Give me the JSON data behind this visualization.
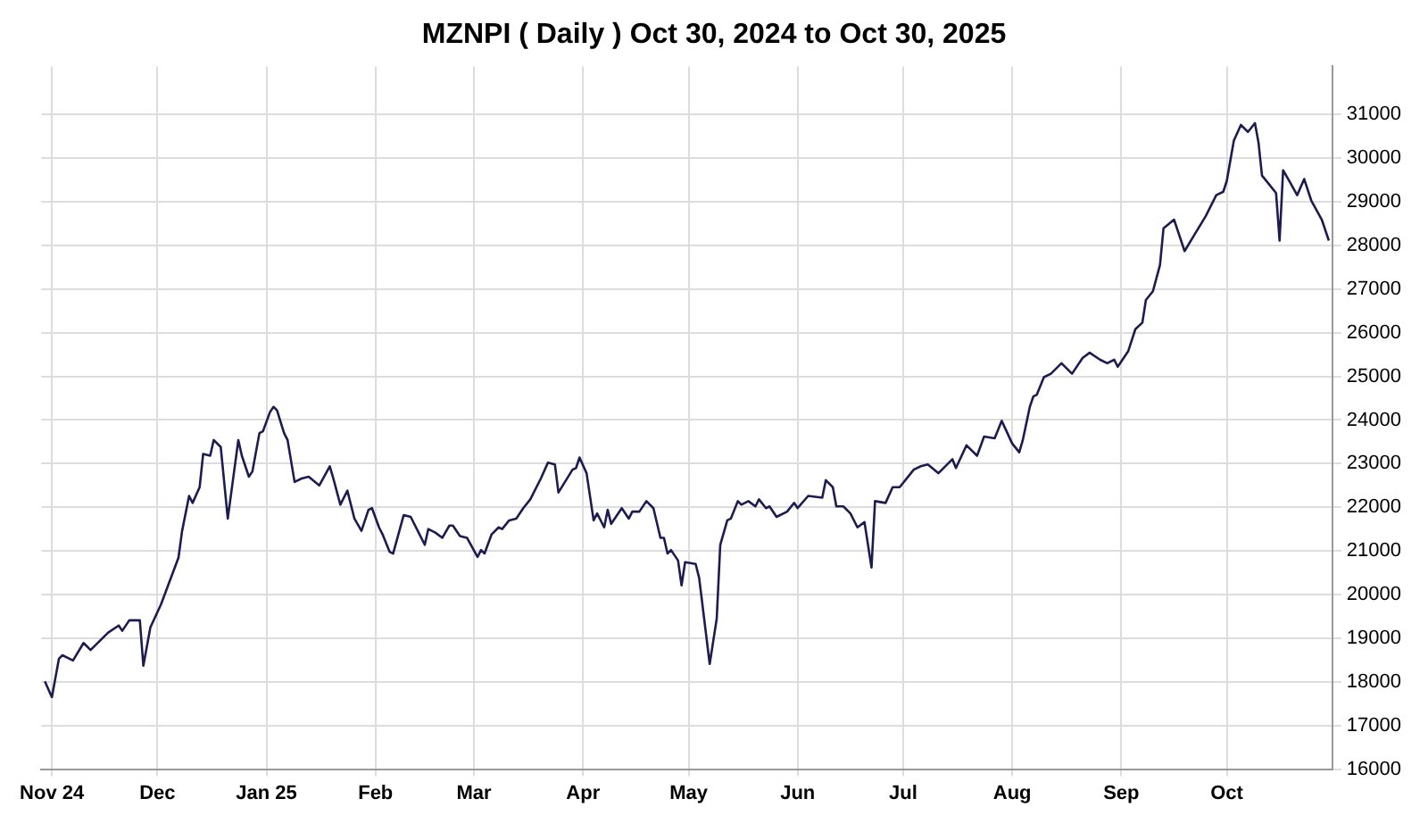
{
  "chart_data": {
    "type": "line",
    "title": "MZNPI ( Daily ) Oct 30, 2024 to Oct 30, 2025",
    "x": [
      "2024-10-30",
      "2024-11-01",
      "2024-11-03",
      "2024-11-04",
      "2024-11-07",
      "2024-11-10",
      "2024-11-12",
      "2024-11-17",
      "2024-11-20",
      "2024-11-21",
      "2024-11-23",
      "2024-11-26",
      "2024-11-27",
      "2024-11-29",
      "2024-12-02",
      "2024-12-07",
      "2024-12-08",
      "2024-12-10",
      "2024-12-11",
      "2024-12-13",
      "2024-12-14",
      "2024-12-16",
      "2024-12-17",
      "2024-12-19",
      "2024-12-21",
      "2024-12-24",
      "2024-12-25",
      "2024-12-27",
      "2024-12-28",
      "2024-12-30",
      "2024-12-31",
      "2025-01-02",
      "2025-01-03",
      "2025-01-04",
      "2025-01-06",
      "2025-01-07",
      "2025-01-09",
      "2025-01-11",
      "2025-01-13",
      "2025-01-16",
      "2025-01-19",
      "2025-01-20",
      "2025-01-22",
      "2025-01-24",
      "2025-01-26",
      "2025-01-28",
      "2025-01-30",
      "2025-01-31",
      "2025-02-02",
      "2025-02-03",
      "2025-02-05",
      "2025-02-06",
      "2025-02-09",
      "2025-02-11",
      "2025-02-13",
      "2025-02-15",
      "2025-02-16",
      "2025-02-18",
      "2025-02-20",
      "2025-02-22",
      "2025-02-23",
      "2025-02-25",
      "2025-02-27",
      "2025-03-02",
      "2025-03-03",
      "2025-03-04",
      "2025-03-06",
      "2025-03-08",
      "2025-03-09",
      "2025-03-11",
      "2025-03-13",
      "2025-03-15",
      "2025-03-17",
      "2025-03-20",
      "2025-03-22",
      "2025-03-24",
      "2025-03-25",
      "2025-03-29",
      "2025-03-30",
      "2025-03-31",
      "2025-04-02",
      "2025-04-04",
      "2025-04-05",
      "2025-04-07",
      "2025-04-08",
      "2025-04-09",
      "2025-04-12",
      "2025-04-14",
      "2025-04-15",
      "2025-04-17",
      "2025-04-19",
      "2025-04-21",
      "2025-04-23",
      "2025-04-24",
      "2025-04-25",
      "2025-04-26",
      "2025-04-28",
      "2025-04-29",
      "2025-04-30",
      "2025-05-03",
      "2025-05-04",
      "2025-05-07",
      "2025-05-09",
      "2025-05-10",
      "2025-05-12",
      "2025-05-13",
      "2025-05-15",
      "2025-05-16",
      "2025-05-18",
      "2025-05-20",
      "2025-05-21",
      "2025-05-23",
      "2025-05-24",
      "2025-05-26",
      "2025-05-29",
      "2025-05-31",
      "2025-06-01",
      "2025-06-04",
      "2025-06-08",
      "2025-06-09",
      "2025-06-11",
      "2025-06-12",
      "2025-06-14",
      "2025-06-16",
      "2025-06-18",
      "2025-06-20",
      "2025-06-22",
      "2025-06-23",
      "2025-06-26",
      "2025-06-28",
      "2025-06-30",
      "2025-07-04",
      "2025-07-06",
      "2025-07-08",
      "2025-07-11",
      "2025-07-15",
      "2025-07-16",
      "2025-07-19",
      "2025-07-22",
      "2025-07-24",
      "2025-07-27",
      "2025-07-29",
      "2025-08-01",
      "2025-08-03",
      "2025-08-04",
      "2025-08-06",
      "2025-08-07",
      "2025-08-08",
      "2025-08-10",
      "2025-08-12",
      "2025-08-15",
      "2025-08-18",
      "2025-08-21",
      "2025-08-23",
      "2025-08-26",
      "2025-08-28",
      "2025-08-30",
      "2025-08-31",
      "2025-09-03",
      "2025-09-05",
      "2025-09-07",
      "2025-09-08",
      "2025-09-10",
      "2025-09-12",
      "2025-09-13",
      "2025-09-16",
      "2025-09-19",
      "2025-09-22",
      "2025-09-25",
      "2025-09-28",
      "2025-09-30",
      "2025-10-01",
      "2025-10-03",
      "2025-10-05",
      "2025-10-07",
      "2025-10-09",
      "2025-10-10",
      "2025-10-11",
      "2025-10-13",
      "2025-10-15",
      "2025-10-16",
      "2025-10-17",
      "2025-10-19",
      "2025-10-21",
      "2025-10-23",
      "2025-10-25",
      "2025-10-28",
      "2025-10-30"
    ],
    "series": [
      {
        "color": "#1c1c50",
        "values": [
          18010,
          17650,
          18530,
          18610,
          18490,
          18890,
          18730,
          19130,
          19290,
          19170,
          19410,
          19410,
          18370,
          19250,
          19770,
          20850,
          21450,
          22260,
          22100,
          22460,
          23220,
          23180,
          23540,
          23380,
          21740,
          23540,
          23180,
          22700,
          22820,
          23700,
          23740,
          24180,
          24300,
          24220,
          23700,
          23540,
          22580,
          22660,
          22700,
          22500,
          22940,
          22660,
          22060,
          22380,
          21740,
          21460,
          21940,
          21980,
          21540,
          21380,
          20980,
          20940,
          21820,
          21780,
          21460,
          21140,
          21500,
          21420,
          21300,
          21580,
          21580,
          21340,
          21300,
          20860,
          21020,
          20940,
          21380,
          21540,
          21500,
          21700,
          21740,
          21980,
          22180,
          22660,
          23020,
          22980,
          22340,
          22860,
          22900,
          23140,
          22780,
          21700,
          21860,
          21540,
          21940,
          21620,
          21980,
          21740,
          21900,
          21900,
          22140,
          21980,
          21300,
          21300,
          20940,
          21020,
          20780,
          20210,
          20740,
          20700,
          20380,
          18410,
          19450,
          21140,
          21700,
          21740,
          22140,
          22060,
          22140,
          22020,
          22180,
          21980,
          22020,
          21780,
          21900,
          22100,
          21980,
          22260,
          22220,
          22620,
          22460,
          22020,
          22020,
          21860,
          21540,
          21660,
          20620,
          22140,
          22100,
          22460,
          22460,
          22860,
          22940,
          22980,
          22780,
          23100,
          22900,
          23420,
          23180,
          23620,
          23580,
          23980,
          23460,
          23260,
          23540,
          24300,
          24540,
          24580,
          24980,
          25060,
          25300,
          25060,
          25420,
          25540,
          25380,
          25300,
          25380,
          25220,
          25580,
          26080,
          26230,
          26750,
          26950,
          27550,
          28390,
          28590,
          27870,
          28270,
          28670,
          29150,
          29230,
          29480,
          30400,
          30760,
          30600,
          30800,
          30360,
          29600,
          29400,
          29200,
          28110,
          29720,
          29440,
          29150,
          29520,
          29030,
          28590,
          28110
        ]
      }
    ],
    "xlim": [
      "2024-10-29",
      "2025-10-31"
    ],
    "xticks": [
      {
        "value": "2024-11-01",
        "label": "Nov 24"
      },
      {
        "value": "2024-12-01",
        "label": "Dec"
      },
      {
        "value": "2025-01-01",
        "label": "Jan 25"
      },
      {
        "value": "2025-02-01",
        "label": "Feb"
      },
      {
        "value": "2025-03-01",
        "label": "Mar"
      },
      {
        "value": "2025-04-01",
        "label": "Apr"
      },
      {
        "value": "2025-05-01",
        "label": "May"
      },
      {
        "value": "2025-06-01",
        "label": "Jun"
      },
      {
        "value": "2025-07-01",
        "label": "Jul"
      },
      {
        "value": "2025-08-01",
        "label": "Aug"
      },
      {
        "value": "2025-09-01",
        "label": "Sep"
      },
      {
        "value": "2025-10-01",
        "label": "Oct"
      }
    ],
    "ylim": [
      16000,
      32100
    ],
    "yticks": [
      16000,
      17000,
      18000,
      19000,
      20000,
      21000,
      22000,
      23000,
      24000,
      25000,
      26000,
      27000,
      28000,
      29000,
      30000,
      31000
    ],
    "grid": true,
    "legend": false
  }
}
